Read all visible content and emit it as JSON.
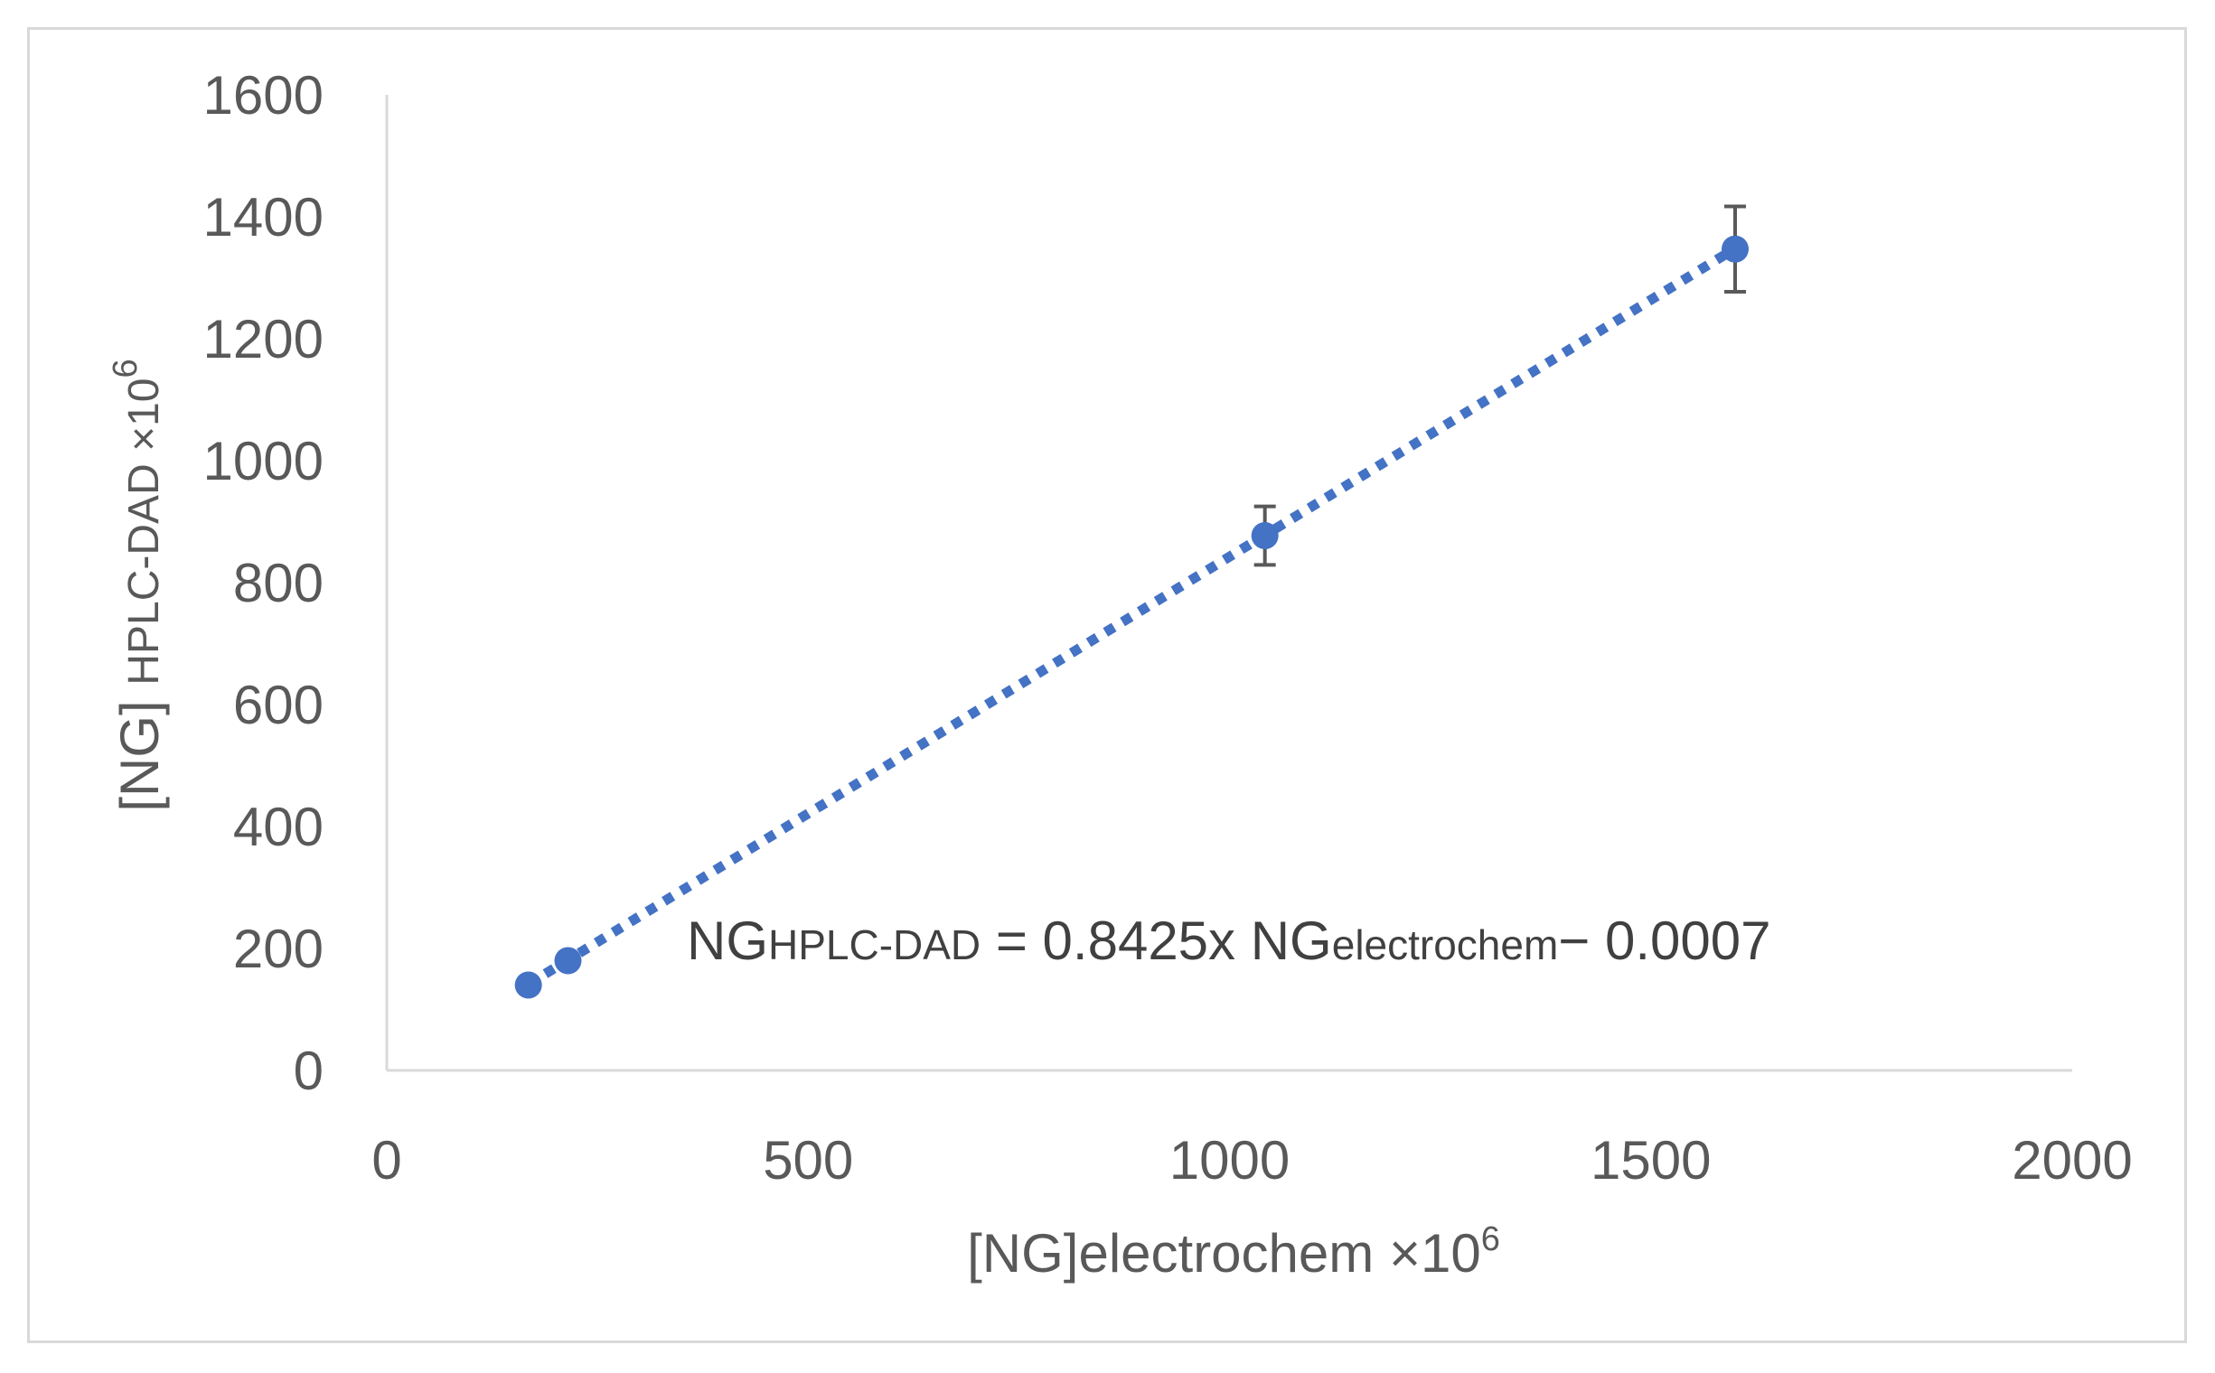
{
  "chart_data": {
    "type": "scatter",
    "title": "",
    "xlim": [
      0,
      2000
    ],
    "ylim": [
      0,
      1600
    ],
    "x_ticks": [
      0,
      500,
      1000,
      1500,
      2000
    ],
    "y_ticks": [
      0,
      200,
      400,
      600,
      800,
      1000,
      1200,
      1400,
      1600
    ],
    "grid": false,
    "legend": "none",
    "xlabel": {
      "main": "[NG]electrochem ×10",
      "sup": "6"
    },
    "ylabel": {
      "main": "[NG] ",
      "sub": "HPLC-DAD ×10",
      "sup": "6"
    },
    "series": [
      {
        "color": "#4472c4",
        "points": [
          {
            "x": 168,
            "y": 140,
            "err": 0
          },
          {
            "x": 215,
            "y": 180,
            "err": 0
          },
          {
            "x": 1042,
            "y": 877,
            "err": 48
          },
          {
            "x": 1600,
            "y": 1347,
            "err": 70
          }
        ]
      }
    ],
    "trendline": {
      "style": "dotted",
      "color": "#4472c4",
      "slope": 0.8425,
      "intercept": -0.0007,
      "x_range": [
        168,
        1600
      ]
    },
    "annotation": {
      "parts": [
        {
          "text": "NG",
          "sub": false
        },
        {
          "text": "HPLC-DAD",
          "sub": true
        },
        {
          "text": " = 0.8425x NG",
          "sub": false
        },
        {
          "text": "electrochem",
          "sub": true
        },
        {
          "text": "− 0.0007",
          "sub": false
        }
      ]
    }
  }
}
